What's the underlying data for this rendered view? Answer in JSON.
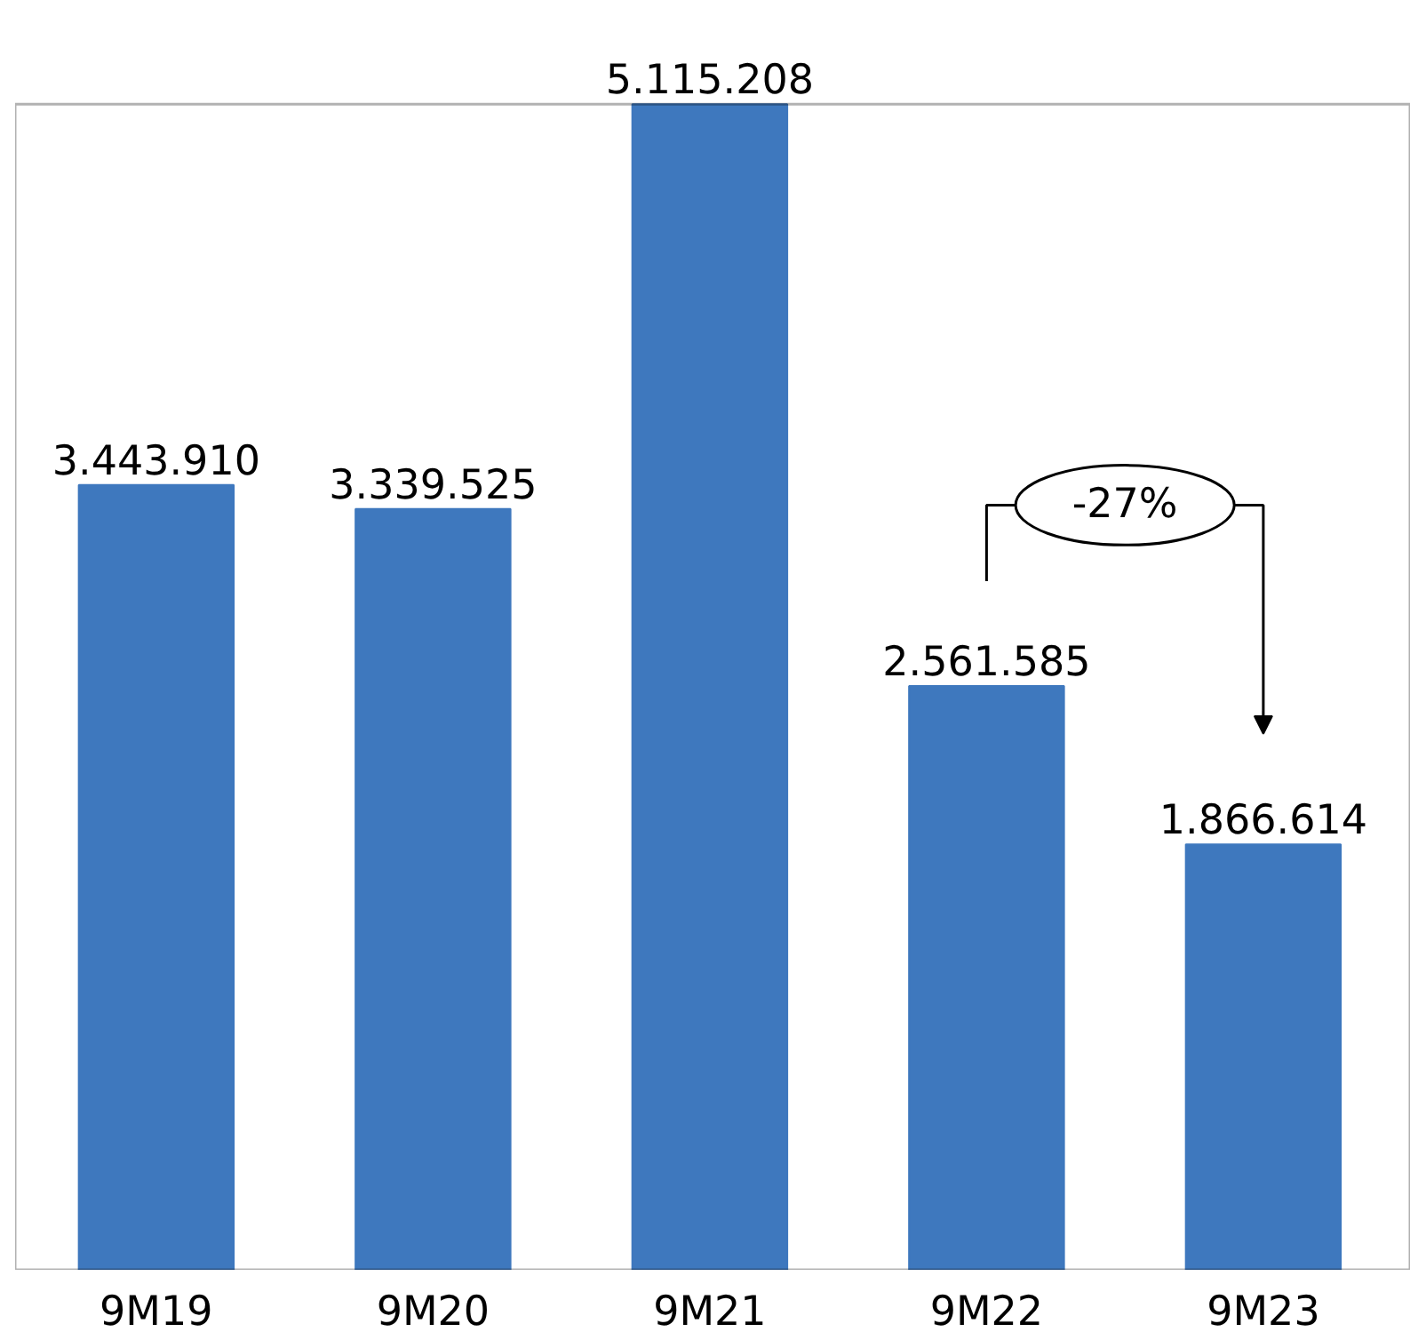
{
  "chart_data": {
    "type": "bar",
    "categories": [
      "9M19",
      "9M20",
      "9M21",
      "9M22",
      "9M23"
    ],
    "values": [
      3443910,
      3339525,
      5115208,
      2561585,
      1866614
    ],
    "value_labels": [
      "3.443.910",
      "3.339.525",
      "5.115.208",
      "2.561.585",
      "1.866.614"
    ],
    "color": "#3e78be",
    "ylim": [
      0,
      5115208
    ],
    "grid": false,
    "annotations": [
      "-27%"
    ]
  }
}
